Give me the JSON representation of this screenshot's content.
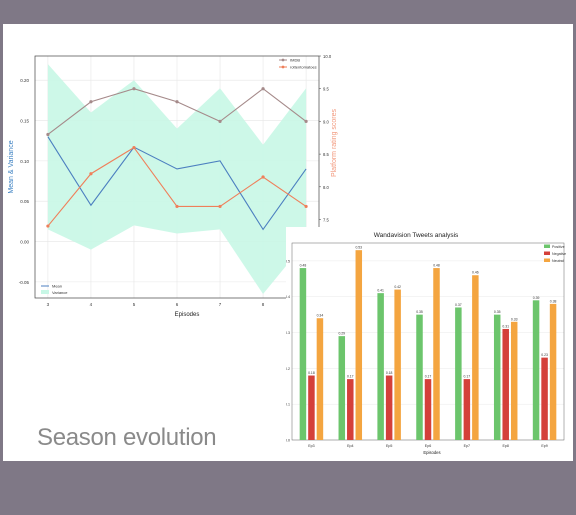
{
  "slide": {
    "title": "Season evolution"
  },
  "chart_data": [
    {
      "type": "line",
      "title": "",
      "xlabel": "Episodes",
      "ylabel": "Mean & Variance",
      "y2label": "Platform rating scores",
      "x": [
        3,
        4,
        5,
        6,
        7,
        8,
        9
      ],
      "ylim": [
        -0.07,
        0.23
      ],
      "y2lim": [
        6.3,
        10.0
      ],
      "yticks": [
        "0.20",
        "0.15",
        "0.10",
        "0.05",
        "0.00",
        "-0.05"
      ],
      "y2ticks": [
        "10.0",
        "9.5",
        "9.0",
        "8.5",
        "8.0",
        "7.5",
        "7.0",
        "6.5"
      ],
      "series": [
        {
          "name": "Mean",
          "axis": "left",
          "color": "#4c7fc0",
          "values": [
            0.13,
            0.045,
            0.117,
            0.09,
            0.1,
            0.015,
            0.09
          ]
        },
        {
          "name": "IMDB",
          "axis": "right",
          "color": "#a58a8a",
          "values": [
            8.8,
            9.3,
            9.5,
            9.3,
            9.0,
            9.5,
            9.0
          ]
        },
        {
          "name": "rottentomatoes",
          "axis": "right",
          "color": "#ef7f5a",
          "values": [
            7.4,
            8.2,
            8.6,
            7.7,
            7.7,
            8.15,
            7.7
          ]
        }
      ],
      "variance": {
        "name": "Variance",
        "color": "#c8f7e6",
        "upper": [
          0.22,
          0.16,
          0.2,
          0.14,
          0.19,
          0.12,
          0.19
        ],
        "lower": [
          0.015,
          -0.01,
          0.02,
          0.01,
          0.015,
          -0.065,
          0.0
        ]
      },
      "grid": true,
      "legend_main": "bottom-left",
      "legend_secondary": "top-right"
    },
    {
      "type": "bar",
      "title": "Wandavision Tweets analysis",
      "xlabel": "Episodes",
      "ylabel": "Proportion of tweets by compound",
      "categories": [
        "Ep3",
        "Ep4",
        "Ep5",
        "Ep6",
        "Ep7",
        "Ep8",
        "Ep9"
      ],
      "ylim": [
        0,
        0.55
      ],
      "yticks": [
        "0.0",
        "0.1",
        "0.2",
        "0.3",
        "0.4",
        "0.5"
      ],
      "series": [
        {
          "name": "Positive",
          "color": "#6cc56c",
          "values": [
            0.48,
            0.29,
            0.41,
            0.35,
            0.37,
            0.35,
            0.39
          ]
        },
        {
          "name": "Negative",
          "color": "#d4403a",
          "values": [
            0.18,
            0.17,
            0.18,
            0.17,
            0.17,
            0.31,
            0.23
          ]
        },
        {
          "name": "Neutral",
          "color": "#f4a540",
          "values": [
            0.34,
            0.53,
            0.42,
            0.48,
            0.46,
            0.33,
            0.38
          ]
        }
      ],
      "data_labels": [
        [
          "0.48",
          "0.29",
          "0.41",
          "0.35",
          "0.37",
          "0.35",
          "0.39"
        ],
        [
          "0.18",
          "0.17",
          "0.18",
          "0.17",
          "0.17",
          "0.31",
          "0.23"
        ],
        [
          "0.34",
          "0.53",
          "0.42",
          "0.48",
          "0.46",
          "0.33",
          "0.38"
        ]
      ],
      "legend": "top-right"
    }
  ]
}
